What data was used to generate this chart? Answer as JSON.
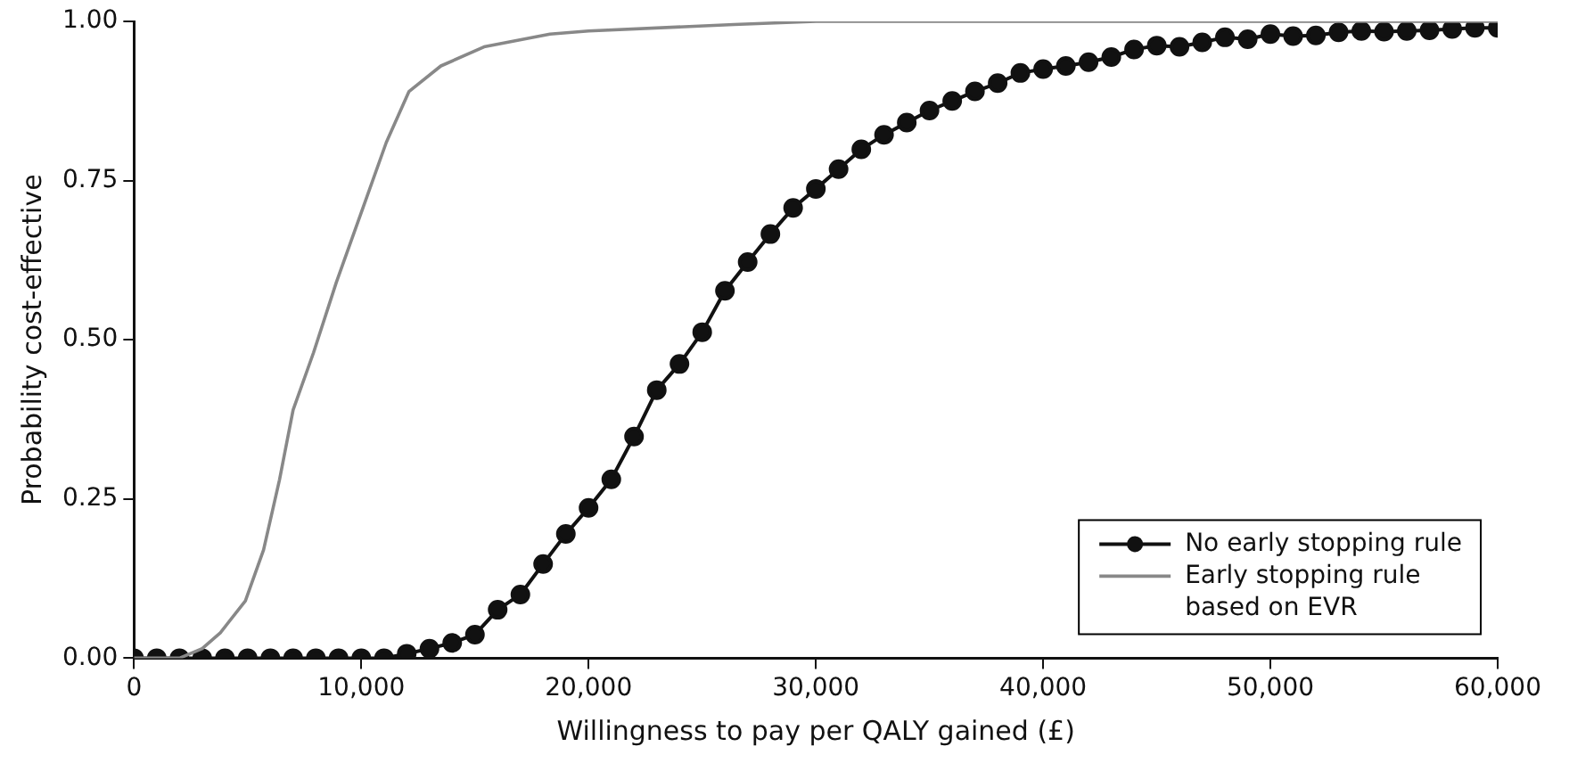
{
  "chart_data": {
    "type": "line",
    "xlabel": "Willingness to pay per QALY gained (£)",
    "ylabel": "Probability cost-effective",
    "xlim": [
      0,
      60000
    ],
    "ylim": [
      0,
      1
    ],
    "xticks": [
      {
        "value": 0,
        "label": "0"
      },
      {
        "value": 10000,
        "label": "10,000"
      },
      {
        "value": 20000,
        "label": "20,000"
      },
      {
        "value": 30000,
        "label": "30,000"
      },
      {
        "value": 40000,
        "label": "40,000"
      },
      {
        "value": 50000,
        "label": "50,000"
      },
      {
        "value": 60000,
        "label": "60,000"
      }
    ],
    "yticks": [
      {
        "value": 0,
        "label": "0.00"
      },
      {
        "value": 0.25,
        "label": "0.25"
      },
      {
        "value": 0.5,
        "label": "0.50"
      },
      {
        "value": 0.75,
        "label": "0.75"
      },
      {
        "value": 1,
        "label": "1.00"
      }
    ],
    "grid": false,
    "legend": "bottom right",
    "series": [
      {
        "name": "No early stopping rule",
        "color": "#111111",
        "marker": "circle",
        "x": [
          0,
          1000,
          2000,
          3000,
          4000,
          5000,
          6000,
          7000,
          8000,
          9000,
          10000,
          11000,
          12000,
          13000,
          14000,
          15000,
          16000,
          17000,
          18000,
          19000,
          20000,
          21000,
          22000,
          23000,
          24000,
          25000,
          26000,
          27000,
          28000,
          29000,
          30000,
          31000,
          32000,
          33000,
          34000,
          35000,
          36000,
          37000,
          38000,
          39000,
          40000,
          41000,
          42000,
          43000,
          44000,
          45000,
          46000,
          47000,
          48000,
          49000,
          50000,
          51000,
          52000,
          53000,
          54000,
          55000,
          56000,
          57000,
          58000,
          59000,
          60000
        ],
        "values": [
          0,
          0,
          0,
          0,
          0,
          0,
          0,
          0,
          0,
          0,
          0,
          0,
          0.007,
          0.015,
          0.024,
          0.037,
          0.076,
          0.1,
          0.148,
          0.195,
          0.236,
          0.281,
          0.348,
          0.421,
          0.462,
          0.512,
          0.577,
          0.622,
          0.666,
          0.707,
          0.737,
          0.768,
          0.799,
          0.822,
          0.841,
          0.86,
          0.875,
          0.89,
          0.903,
          0.919,
          0.925,
          0.93,
          0.936,
          0.944,
          0.956,
          0.962,
          0.96,
          0.967,
          0.975,
          0.972,
          0.98,
          0.977,
          0.978,
          0.983,
          0.985,
          0.984,
          0.985,
          0.986,
          0.988,
          0.99,
          0.99
        ]
      },
      {
        "name": "Early stopping rule based on EVR",
        "color": "#888888",
        "marker": "none",
        "x": [
          0,
          2000,
          3000,
          3800,
          4900,
          5700,
          6400,
          7000,
          7900,
          8900,
          10000,
          11100,
          12100,
          13500,
          15400,
          18300,
          20000,
          26400,
          30000,
          60000
        ],
        "values": [
          0,
          0,
          0.015,
          0.04,
          0.09,
          0.17,
          0.28,
          0.39,
          0.48,
          0.59,
          0.7,
          0.81,
          0.89,
          0.93,
          0.96,
          0.98,
          0.985,
          0.995,
          1,
          1
        ]
      }
    ]
  }
}
